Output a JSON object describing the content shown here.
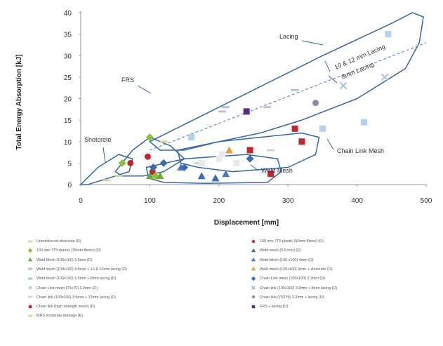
{
  "chart_data": {
    "type": "scatter",
    "title": "",
    "xlabel": "Displacement [mm]",
    "ylabel": "Total Energy Absorption [kJ]",
    "xlim": [
      0,
      500
    ],
    "ylim": [
      0,
      40
    ],
    "x_ticks": [
      "0",
      "100",
      "200",
      "300",
      "400",
      "500"
    ],
    "y_ticks": [
      "0",
      "5",
      "10",
      "15",
      "20",
      "25",
      "30",
      "35",
      "40"
    ],
    "grid": false,
    "legend_position": "bottom",
    "series": [
      {
        "name": "Unreinforced shotcrete (D)",
        "marker": "dash",
        "color": "#d9d9a0",
        "points": [
          [
            38,
            1
          ],
          [
            55,
            2
          ]
        ]
      },
      {
        "name": "100 mm 7T5 plastic (50mm fibres) (D)",
        "marker": "circle",
        "color": "#c0282d",
        "points": [
          [
            72,
            5
          ],
          [
            97,
            6.5
          ],
          [
            104,
            3
          ]
        ]
      },
      {
        "name": "100 mm 7T5 dramix (35mm fibres) (D)",
        "marker": "diamond",
        "color": "#8fbf3a",
        "points": [
          [
            60,
            5
          ],
          [
            100,
            11
          ],
          [
            108,
            2
          ]
        ]
      },
      {
        "name": "Weld mesh (5.6 mm) (P)",
        "marker": "triangle",
        "color": "#3a6db0",
        "points": [
          [
            175,
            2
          ],
          [
            195,
            1.5
          ]
        ]
      },
      {
        "name": "Weld Mesh (100x100) 3.5mm (D)",
        "marker": "triangle",
        "color": "#6fa83a",
        "points": [
          [
            100,
            2
          ],
          [
            115,
            2
          ]
        ]
      },
      {
        "name": "Weld Mesh (100 x100) 4mm (D)",
        "marker": "triangle",
        "color": "#4a7aba",
        "points": [
          [
            145,
            4
          ],
          [
            210,
            2.5
          ]
        ]
      },
      {
        "name": "Weld mesh (100x100) 3.5mm + 10 & 12mm lacing (D)",
        "marker": "dash",
        "color": "#c0c0d0",
        "points": [
          [
            205,
            17
          ],
          [
            270,
            18
          ]
        ]
      },
      {
        "name": "Weld mesh (100x100) 4mm + shotcrete (D)",
        "marker": "triangle",
        "color": "#e4a23c",
        "points": [
          [
            215,
            8
          ]
        ]
      },
      {
        "name": "Weld mesh (100x100) 3.5mm + 8mm lacing (D)",
        "marker": "dash",
        "color": "#a7c4e0",
        "points": [
          [
            210,
            18
          ],
          [
            310,
            22
          ]
        ]
      },
      {
        "name": "Chain Link mesh (100x100) 3.2mm (D)",
        "marker": "diamond",
        "color": "#3a6db0",
        "points": [
          [
            105,
            4
          ],
          [
            120,
            5
          ],
          [
            150,
            4
          ],
          [
            245,
            6
          ]
        ]
      },
      {
        "name": "Chain Link mesh (75x75) 3.2mm (D)",
        "marker": "square",
        "color": "#b4d0ea",
        "points": [
          [
            160,
            11
          ],
          [
            350,
            13
          ]
        ]
      },
      {
        "name": "Chain link (100x100) 3.2mm + 8mm lacing (D)",
        "marker": "cross",
        "color": "#a7c4e0",
        "points": [
          [
            380,
            23
          ],
          [
            440,
            25
          ]
        ]
      },
      {
        "name": "Chain link (100x100) 3.5mm + 12mm lacing (D)",
        "marker": "dash",
        "color": "#c0d8ea",
        "points": [
          [
            170,
            5
          ],
          [
            275,
            8
          ]
        ]
      },
      {
        "name": "Chain link (75X75) 3.2mm + lacing (D)",
        "marker": "circle",
        "color": "#8d8aa7",
        "points": [
          [
            340,
            19
          ]
        ]
      },
      {
        "name": "Chain link (high strength mesh) (P)",
        "marker": "square",
        "color": "#c0282d",
        "points": [
          [
            245,
            8
          ],
          [
            275,
            2.5
          ],
          [
            310,
            13
          ],
          [
            320,
            10
          ]
        ]
      },
      {
        "name": "FRS + lacing (D)",
        "marker": "square",
        "color": "#5b2a8c",
        "points": [
          [
            240,
            17
          ]
        ]
      },
      {
        "name": "MRS moderate damage (E)",
        "marker": "dash",
        "color": "#d9d9a0",
        "points": [
          [
            120,
            10
          ]
        ]
      },
      {
        "name": "",
        "marker": "square",
        "color": "#e8e8f0",
        "points": [
          [
            200,
            6
          ],
          [
            205,
            7
          ],
          [
            225,
            5
          ],
          [
            175,
            5
          ]
        ]
      },
      {
        "name": "",
        "marker": "square",
        "color": "#b4d0ea",
        "points": [
          [
            410,
            14.5
          ],
          [
            445,
            35
          ]
        ]
      }
    ],
    "trend_line": {
      "points": [
        [
          100,
          8
        ],
        [
          500,
          33
        ]
      ],
      "style": "dashed",
      "color": "#5b8dc9"
    },
    "regions": [
      {
        "label": "Lacing",
        "color": "#3566a8"
      },
      {
        "label": "Chain Link Mesh",
        "color": "#3566a8"
      },
      {
        "label": "Weld Mesh",
        "color": "#3566a8"
      },
      {
        "label": "Shotcrete",
        "color": "#3566a8"
      },
      {
        "label": "FRS",
        "color": "#3566a8"
      }
    ],
    "annotations": [
      "Lacing",
      "10 & 12 mm Lacing",
      "8mm Lacing",
      "FRS",
      "Shotcrete",
      "Chain Link Mesh",
      "Weld Mesh"
    ]
  }
}
